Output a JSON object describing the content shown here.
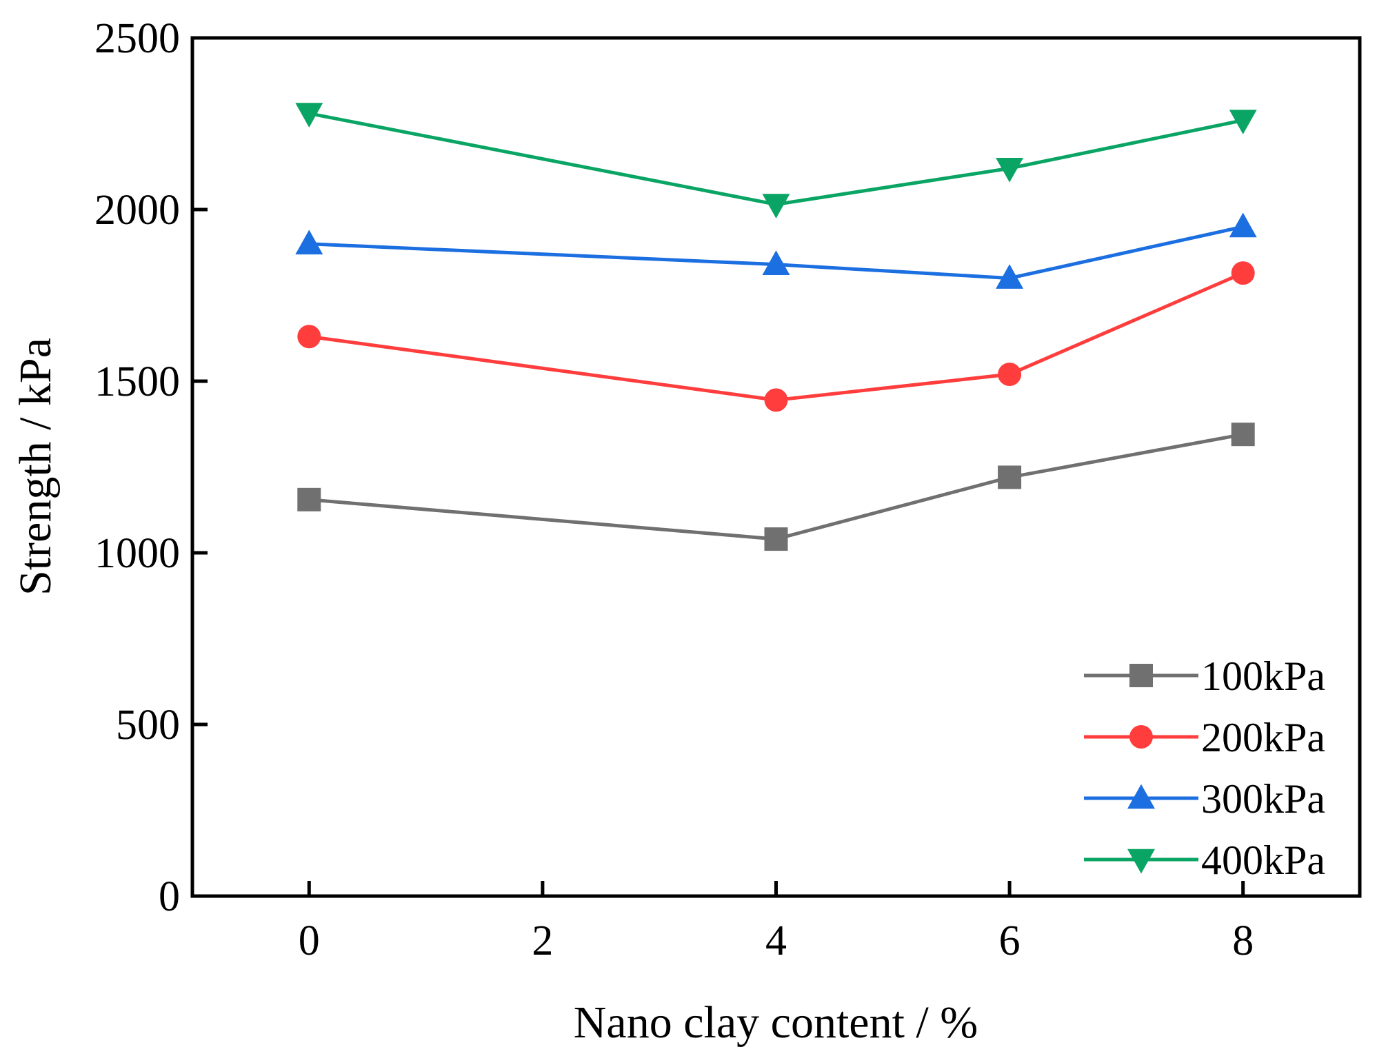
{
  "chart_data": {
    "type": "line",
    "title": "",
    "xlabel": "Nano clay content / %",
    "ylabel": "Strength / kPa",
    "xlim": [
      -1,
      9
    ],
    "ylim": [
      0,
      2500
    ],
    "xticks": [
      0,
      2,
      4,
      6,
      8
    ],
    "yticks": [
      0,
      500,
      1000,
      1500,
      2000,
      2500
    ],
    "grid": false,
    "legend_position": "bottom-right",
    "x": [
      0,
      4,
      6,
      8
    ],
    "series": [
      {
        "name": "100kPa",
        "marker": "square",
        "color": "#707070",
        "values": [
          1155,
          1040,
          1220,
          1345
        ]
      },
      {
        "name": "200kPa",
        "marker": "circle",
        "color": "#ff3d3d",
        "values": [
          1630,
          1445,
          1520,
          1815
        ]
      },
      {
        "name": "300kPa",
        "marker": "triangle-up",
        "color": "#1c6fe0",
        "values": [
          1900,
          1840,
          1800,
          1950
        ]
      },
      {
        "name": "400kPa",
        "marker": "triangle-down",
        "color": "#0aa565",
        "values": [
          2280,
          2015,
          2120,
          2260
        ]
      }
    ]
  }
}
